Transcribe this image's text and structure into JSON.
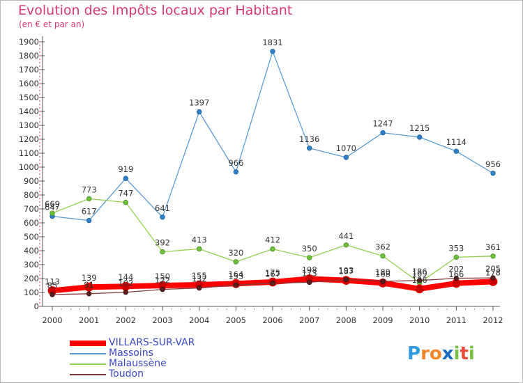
{
  "title": "Evolution des Impôts locaux par Habitant",
  "subtitle": "(en € et par an)",
  "logo_text": "Proxiti",
  "chart_data": {
    "type": "line",
    "x": [
      2000,
      2001,
      2002,
      2003,
      2004,
      2005,
      2006,
      2007,
      2008,
      2009,
      2010,
      2011,
      2012
    ],
    "ylim": [
      0,
      1900
    ],
    "yticks": [
      0,
      100,
      200,
      300,
      400,
      500,
      600,
      700,
      800,
      900,
      1000,
      1100,
      1200,
      1300,
      1400,
      1500,
      1600,
      1700,
      1800,
      1900
    ],
    "grid": false,
    "legend_position": "bottom-left",
    "series": [
      {
        "name": "VILLARS-SUR-VAR",
        "color": "#ff0000",
        "values": [
          113,
          139,
          144,
          150,
          155,
          164,
          175,
          198,
          187,
          168,
          126,
          166,
          178
        ]
      },
      {
        "name": "Massoins",
        "color": "#5b9bd5",
        "values": [
          647,
          617,
          919,
          641,
          1397,
          966,
          1831,
          1136,
          1070,
          1247,
          1215,
          1114,
          956
        ]
      },
      {
        "name": "Malaussène",
        "color": "#92d050",
        "values": [
          669,
          773,
          747,
          392,
          413,
          320,
          412,
          350,
          441,
          362,
          169,
          353,
          361
        ]
      },
      {
        "name": "Toudon",
        "color": "#7f3a3a",
        "values": [
          85,
          91,
          102,
          122,
          132,
          153,
          167,
          173,
          193,
          180,
          186,
          202,
          205
        ]
      }
    ]
  }
}
